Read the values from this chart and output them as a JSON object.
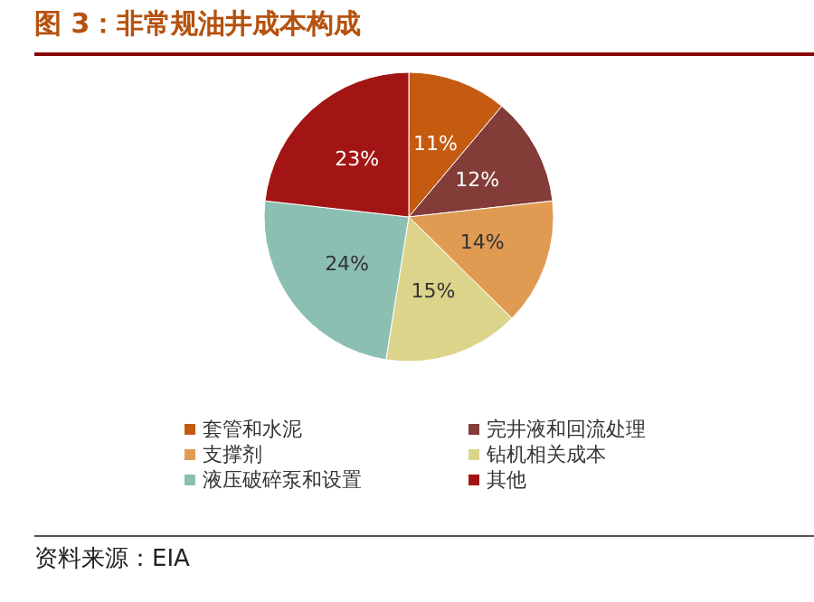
{
  "chart_data": {
    "type": "pie",
    "title": "图 3：非常规油井成本构成",
    "categories": [
      "套管和水泥",
      "完井液和回流处理",
      "支撑剂",
      "钻机相关成本",
      "液压破碎泵和设置",
      "其他"
    ],
    "values": [
      11,
      12,
      14,
      15,
      24,
      23
    ],
    "colors": [
      "#c55a11",
      "#843c39",
      "#e09a52",
      "#ddd48c",
      "#8bbfb2",
      "#a31515"
    ],
    "value_labels": [
      "11%",
      "12%",
      "14%",
      "15%",
      "24%",
      "23%"
    ],
    "legend": "bottom",
    "annotations": [
      "资料来源：EIA"
    ]
  }
}
